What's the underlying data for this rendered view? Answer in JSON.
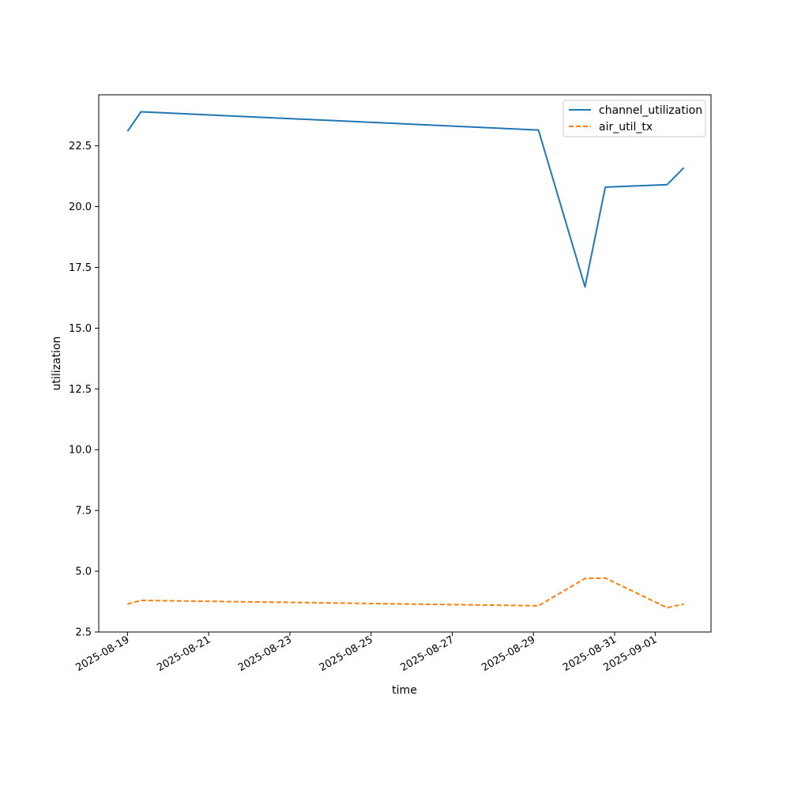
{
  "chart_data": {
    "type": "line",
    "title": "",
    "xlabel": "time",
    "ylabel": "utilization",
    "x_type": "date",
    "xlim": [
      "2025-08-18T07:00",
      "2025-09-02T09:00"
    ],
    "ylim": [
      2.5,
      24.6
    ],
    "x_ticks": [
      "2025-08-19",
      "2025-08-21",
      "2025-08-23",
      "2025-08-25",
      "2025-08-27",
      "2025-08-29",
      "2025-08-31",
      "2025-09-01"
    ],
    "y_ticks": [
      "2.5",
      "5.0",
      "7.5",
      "10.0",
      "12.5",
      "15.0",
      "17.5",
      "20.0",
      "22.5"
    ],
    "grid": false,
    "legend_position": "top-right",
    "series": [
      {
        "name": "channel_utilization",
        "color": "#1f77b4",
        "style": "solid",
        "points": [
          {
            "x": "2025-08-19T00:00",
            "y": 23.1
          },
          {
            "x": "2025-08-19T08:00",
            "y": 23.9
          },
          {
            "x": "2025-08-29T03:00",
            "y": 23.15
          },
          {
            "x": "2025-08-30T06:30",
            "y": 16.7
          },
          {
            "x": "2025-08-30T18:30",
            "y": 20.8
          },
          {
            "x": "2025-09-01T07:00",
            "y": 20.9
          },
          {
            "x": "2025-09-01T17:00",
            "y": 21.6
          }
        ]
      },
      {
        "name": "air_util_tx",
        "color": "#ff7f0e",
        "style": "dashed",
        "points": [
          {
            "x": "2025-08-19T00:00",
            "y": 3.65
          },
          {
            "x": "2025-08-19T08:00",
            "y": 3.8
          },
          {
            "x": "2025-08-29T03:00",
            "y": 3.58
          },
          {
            "x": "2025-08-30T06:30",
            "y": 4.7
          },
          {
            "x": "2025-08-30T18:30",
            "y": 4.72
          },
          {
            "x": "2025-09-01T07:00",
            "y": 3.5
          },
          {
            "x": "2025-09-01T17:00",
            "y": 3.65
          }
        ]
      }
    ]
  }
}
